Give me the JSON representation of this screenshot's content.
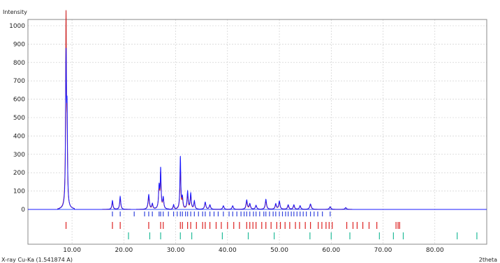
{
  "chart_data": {
    "type": "line",
    "ylabel": "Intensity",
    "xlabel": "2theta",
    "radiation_label": "X-ray Cu-Ka (1.541874 A)",
    "xlim": [
      1.5,
      90
    ],
    "ylim": [
      0,
      1050
    ],
    "grid": true,
    "x_ticks": [
      10,
      20,
      30,
      40,
      50,
      60,
      70,
      80
    ],
    "x_tick_labels": [
      "10.00",
      "20.00",
      "30.00",
      "40.00",
      "50.00",
      "60.00",
      "70.00",
      "80.00"
    ],
    "y_ticks": [
      0,
      100,
      200,
      300,
      400,
      500,
      600,
      700,
      800,
      900,
      1000
    ],
    "y_tick_labels": [
      "0",
      "100",
      "200",
      "300",
      "400",
      "500",
      "600",
      "700",
      "800",
      "900",
      "1000"
    ],
    "colors": {
      "observed": "#1a1aff",
      "calculated": "#cc2222",
      "bg": "#ffffff",
      "grid": "#c8c8c8",
      "ref_a": "#3344dd",
      "ref_b": "#dd2222",
      "ref_c": "#22bb99"
    },
    "peaks": [
      {
        "x": 8.85,
        "observed": 805,
        "calculated": 1040,
        "width": 0.2
      },
      {
        "x": 9.05,
        "observed": 450,
        "calculated": 300,
        "width": 0.18
      },
      {
        "x": 17.8,
        "observed": 48,
        "calculated": 40,
        "width": 0.25
      },
      {
        "x": 19.3,
        "observed": 70,
        "calculated": 60,
        "width": 0.25
      },
      {
        "x": 24.8,
        "observed": 80,
        "calculated": 65,
        "width": 0.3
      },
      {
        "x": 25.5,
        "observed": 30,
        "calculated": 25,
        "width": 0.25
      },
      {
        "x": 26.8,
        "observed": 120,
        "calculated": 110,
        "width": 0.25
      },
      {
        "x": 27.1,
        "observed": 210,
        "calculated": 190,
        "width": 0.2
      },
      {
        "x": 27.6,
        "observed": 60,
        "calculated": 55,
        "width": 0.25
      },
      {
        "x": 29.6,
        "observed": 25,
        "calculated": 20,
        "width": 0.25
      },
      {
        "x": 30.9,
        "observed": 285,
        "calculated": 230,
        "width": 0.2
      },
      {
        "x": 31.3,
        "observed": 60,
        "calculated": 50,
        "width": 0.25
      },
      {
        "x": 32.3,
        "observed": 95,
        "calculated": 80,
        "width": 0.25
      },
      {
        "x": 32.9,
        "observed": 85,
        "calculated": 75,
        "width": 0.25
      },
      {
        "x": 33.6,
        "observed": 45,
        "calculated": 40,
        "width": 0.25
      },
      {
        "x": 35.7,
        "observed": 40,
        "calculated": 35,
        "width": 0.3
      },
      {
        "x": 36.6,
        "observed": 25,
        "calculated": 22,
        "width": 0.3
      },
      {
        "x": 39.2,
        "observed": 20,
        "calculated": 18,
        "width": 0.3
      },
      {
        "x": 41.0,
        "observed": 20,
        "calculated": 18,
        "width": 0.3
      },
      {
        "x": 43.7,
        "observed": 50,
        "calculated": 40,
        "width": 0.3
      },
      {
        "x": 44.3,
        "observed": 30,
        "calculated": 25,
        "width": 0.3
      },
      {
        "x": 45.5,
        "observed": 22,
        "calculated": 20,
        "width": 0.3
      },
      {
        "x": 47.4,
        "observed": 55,
        "calculated": 45,
        "width": 0.3
      },
      {
        "x": 49.3,
        "observed": 30,
        "calculated": 25,
        "width": 0.3
      },
      {
        "x": 50.0,
        "observed": 45,
        "calculated": 40,
        "width": 0.3
      },
      {
        "x": 51.7,
        "observed": 25,
        "calculated": 20,
        "width": 0.3
      },
      {
        "x": 52.8,
        "observed": 25,
        "calculated": 20,
        "width": 0.3
      },
      {
        "x": 54.0,
        "observed": 20,
        "calculated": 18,
        "width": 0.3
      },
      {
        "x": 56.0,
        "observed": 30,
        "calculated": 25,
        "width": 0.35
      },
      {
        "x": 59.8,
        "observed": 15,
        "calculated": 12,
        "width": 0.35
      },
      {
        "x": 62.8,
        "observed": 10,
        "calculated": 8,
        "width": 0.35
      }
    ],
    "reflection_rows": [
      {
        "color": "#3344dd",
        "positions": [
          17.8,
          19.3,
          22.0,
          24.0,
          24.8,
          25.5,
          26.8,
          27.1,
          27.6,
          28.6,
          29.6,
          30.3,
          30.9,
          31.3,
          31.9,
          32.3,
          32.9,
          33.6,
          34.4,
          35.2,
          35.7,
          36.6,
          37.4,
          38.2,
          39.2,
          40.3,
          41.0,
          41.8,
          42.6,
          43.2,
          43.7,
          44.3,
          45.0,
          45.5,
          46.2,
          47.0,
          47.4,
          48.1,
          48.8,
          49.3,
          50.0,
          50.6,
          51.2,
          51.7,
          52.3,
          52.8,
          53.4,
          54.0,
          54.6,
          55.2,
          56.0,
          56.7,
          57.4,
          58.3,
          59.8
        ]
      },
      {
        "color": "#dd2222",
        "positions": [
          8.85,
          17.8,
          19.3,
          24.8,
          27.1,
          27.6,
          30.9,
          31.3,
          32.3,
          32.9,
          34.0,
          35.2,
          35.7,
          36.6,
          37.8,
          38.8,
          40.0,
          41.2,
          42.3,
          43.7,
          44.3,
          44.9,
          45.5,
          46.6,
          47.4,
          48.4,
          49.5,
          50.2,
          51.1,
          52.0,
          53.1,
          53.9,
          55.0,
          56.0,
          57.5,
          58.2,
          59.0,
          59.6,
          60.2,
          63.0,
          64.2,
          65.0,
          66.1,
          67.3,
          68.8,
          72.5,
          72.9,
          73.2
        ]
      },
      {
        "color": "#22bb99",
        "positions": [
          20.9,
          25.0,
          27.1,
          30.9,
          33.1,
          39.0,
          44.0,
          49.0,
          55.9,
          60.0,
          63.6,
          69.3,
          72.0,
          73.9,
          84.3,
          88.1
        ]
      }
    ]
  }
}
